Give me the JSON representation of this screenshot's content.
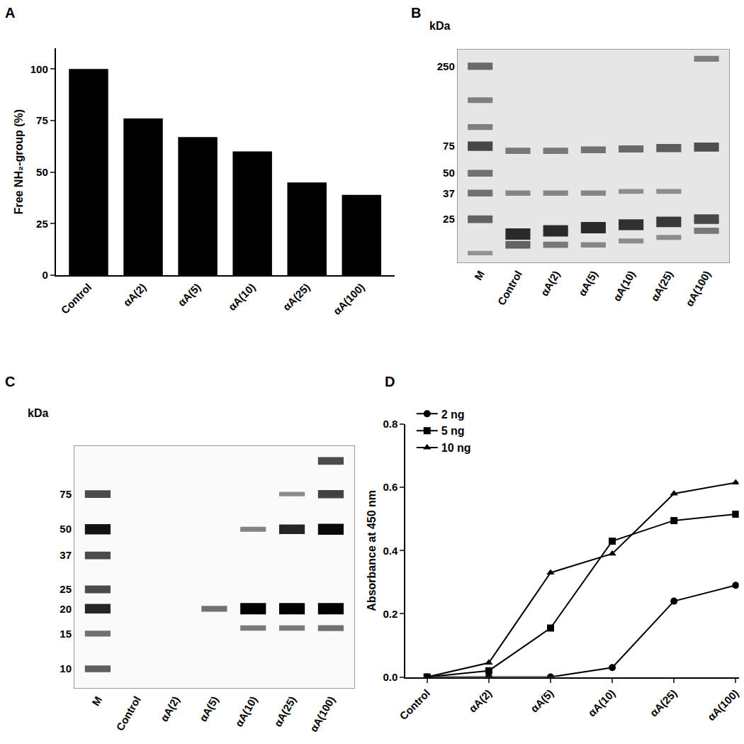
{
  "chart_data": [
    {
      "type": "bar",
      "title": "A",
      "categories": [
        "Control",
        "αA(2)",
        "αA(5)",
        "αA(10)",
        "αA(25)",
        "αA(100)"
      ],
      "values": [
        100,
        76,
        67,
        60,
        45,
        39
      ],
      "color": "#000000",
      "ylabel": "Free NH₂-group (%)",
      "ylim": [
        0,
        110
      ],
      "yticks": [
        0,
        25,
        50,
        75,
        100
      ]
    },
    {
      "type": "gel",
      "title": "B",
      "ylabel": "kDa",
      "categories": [
        "M",
        "Control",
        "αA(2)",
        "αA(5)",
        "αA(10)",
        "αA(25)",
        "αA(100)"
      ],
      "log": "y",
      "ylim": [
        13,
        320
      ],
      "yticks": [
        250,
        75,
        50,
        37,
        25
      ],
      "color": "#2a2a2a",
      "bands": [
        {
          "lane": 0,
          "kDa": 250,
          "intensity": 0.55
        },
        {
          "lane": 0,
          "kDa": 150,
          "intensity": 0.4
        },
        {
          "lane": 0,
          "kDa": 100,
          "intensity": 0.4
        },
        {
          "lane": 0,
          "kDa": 75,
          "intensity": 0.8
        },
        {
          "lane": 0,
          "kDa": 50,
          "intensity": 0.5
        },
        {
          "lane": 0,
          "kDa": 37,
          "intensity": 0.5
        },
        {
          "lane": 0,
          "kDa": 25,
          "intensity": 0.6
        },
        {
          "lane": 0,
          "kDa": 15,
          "intensity": 0.25
        },
        {
          "lane": 1,
          "kDa": 70,
          "intensity": 0.45
        },
        {
          "lane": 1,
          "kDa": 37,
          "intensity": 0.35
        },
        {
          "lane": 1,
          "kDa": 20,
          "intensity": 1.0
        },
        {
          "lane": 1,
          "kDa": 17,
          "intensity": 0.6
        },
        {
          "lane": 2,
          "kDa": 70,
          "intensity": 0.45
        },
        {
          "lane": 2,
          "kDa": 37,
          "intensity": 0.35
        },
        {
          "lane": 2,
          "kDa": 21,
          "intensity": 1.0
        },
        {
          "lane": 2,
          "kDa": 17,
          "intensity": 0.45
        },
        {
          "lane": 3,
          "kDa": 71,
          "intensity": 0.5
        },
        {
          "lane": 3,
          "kDa": 37,
          "intensity": 0.35
        },
        {
          "lane": 3,
          "kDa": 22,
          "intensity": 1.0
        },
        {
          "lane": 3,
          "kDa": 17,
          "intensity": 0.35
        },
        {
          "lane": 4,
          "kDa": 72,
          "intensity": 0.55
        },
        {
          "lane": 4,
          "kDa": 38,
          "intensity": 0.3
        },
        {
          "lane": 4,
          "kDa": 23,
          "intensity": 0.95
        },
        {
          "lane": 4,
          "kDa": 18,
          "intensity": 0.3
        },
        {
          "lane": 5,
          "kDa": 73,
          "intensity": 0.65
        },
        {
          "lane": 5,
          "kDa": 38,
          "intensity": 0.3
        },
        {
          "lane": 5,
          "kDa": 24,
          "intensity": 0.9
        },
        {
          "lane": 5,
          "kDa": 19,
          "intensity": 0.3
        },
        {
          "lane": 6,
          "kDa": 280,
          "intensity": 0.4
        },
        {
          "lane": 6,
          "kDa": 74,
          "intensity": 0.75
        },
        {
          "lane": 6,
          "kDa": 25,
          "intensity": 0.8
        },
        {
          "lane": 6,
          "kDa": 21,
          "intensity": 0.45
        }
      ]
    },
    {
      "type": "gel",
      "title": "C",
      "ylabel": "kDa",
      "categories": [
        "M",
        "Control",
        "αA(2)",
        "αA(5)",
        "αA(10)",
        "αA(25)",
        "αA(100)"
      ],
      "log": "y",
      "ylim": [
        8,
        130
      ],
      "yticks": [
        75,
        50,
        37,
        25,
        20,
        15,
        10
      ],
      "color": "#000000",
      "bands": [
        {
          "lane": 0,
          "kDa": 75,
          "intensity": 0.6
        },
        {
          "lane": 0,
          "kDa": 50,
          "intensity": 0.9
        },
        {
          "lane": 0,
          "kDa": 37,
          "intensity": 0.6
        },
        {
          "lane": 0,
          "kDa": 25,
          "intensity": 0.6
        },
        {
          "lane": 0,
          "kDa": 20,
          "intensity": 0.8
        },
        {
          "lane": 0,
          "kDa": 15,
          "intensity": 0.4
        },
        {
          "lane": 0,
          "kDa": 10,
          "intensity": 0.5
        },
        {
          "lane": 3,
          "kDa": 20,
          "intensity": 0.4
        },
        {
          "lane": 4,
          "kDa": 50,
          "intensity": 0.3
        },
        {
          "lane": 4,
          "kDa": 20,
          "intensity": 1.0
        },
        {
          "lane": 4,
          "kDa": 16,
          "intensity": 0.35
        },
        {
          "lane": 5,
          "kDa": 75,
          "intensity": 0.25
        },
        {
          "lane": 5,
          "kDa": 50,
          "intensity": 0.8
        },
        {
          "lane": 5,
          "kDa": 20,
          "intensity": 1.0
        },
        {
          "lane": 5,
          "kDa": 16,
          "intensity": 0.35
        },
        {
          "lane": 6,
          "kDa": 110,
          "intensity": 0.6
        },
        {
          "lane": 6,
          "kDa": 75,
          "intensity": 0.65
        },
        {
          "lane": 6,
          "kDa": 50,
          "intensity": 0.95
        },
        {
          "lane": 6,
          "kDa": 20,
          "intensity": 1.0
        },
        {
          "lane": 6,
          "kDa": 16,
          "intensity": 0.4
        }
      ]
    },
    {
      "type": "line",
      "title": "D",
      "categories": [
        "Control",
        "αA(2)",
        "αA(5)",
        "αA(10)",
        "αA(25)",
        "αA(100)"
      ],
      "ylabel": "Absorbance at 450 nm",
      "ylim": [
        0,
        0.8
      ],
      "yticks": [
        {
          "value": 0,
          "label": "0.0"
        },
        {
          "value": 0.2,
          "label": "0.2"
        },
        {
          "value": 0.4,
          "label": "0.4"
        },
        {
          "value": 0.6,
          "label": "0.6"
        },
        {
          "value": 0.8,
          "label": "0.8"
        }
      ],
      "legend": "top-left",
      "series": [
        {
          "name": "2 ng",
          "color": "#000000",
          "marker": "circle",
          "values": [
            0,
            0,
            0,
            0.03,
            0.24,
            0.29
          ]
        },
        {
          "name": "5 ng",
          "color": "#000000",
          "marker": "square",
          "values": [
            0,
            0.02,
            0.155,
            0.43,
            0.495,
            0.515
          ]
        },
        {
          "name": "10 ng",
          "color": "#000000",
          "marker": "triangle",
          "values": [
            0,
            0.045,
            0.33,
            0.39,
            0.58,
            0.615
          ]
        }
      ]
    }
  ]
}
